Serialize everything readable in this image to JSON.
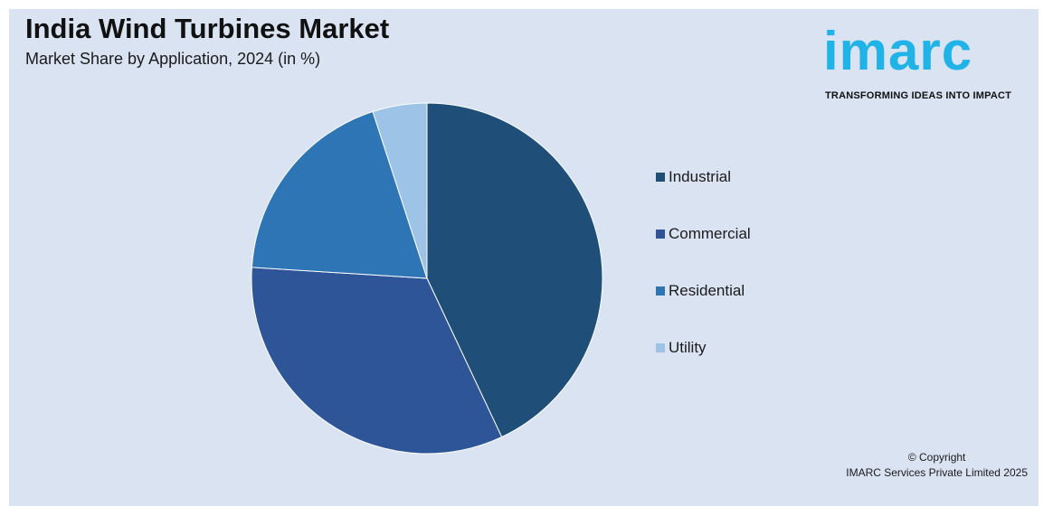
{
  "header": {
    "title": "India Wind Turbines Market",
    "subtitle": "Market Share by Application, 2024 (in %)"
  },
  "logo": {
    "name": "imarc",
    "tagline": "TRANSFORMING IDEAS INTO IMPACT",
    "color": "#1fb3e8"
  },
  "footer": {
    "copyright_line1": "© Copyright",
    "copyright_line2": "IMARC Services Private Limited 2025"
  },
  "colors": {
    "background": "#d9e3f2",
    "industrial": "#1f4e79",
    "commercial": "#2e5597",
    "residential": "#2e75b6",
    "utility": "#9dc3e6"
  },
  "chart_data": {
    "type": "pie",
    "title": "India Wind Turbines Market",
    "subtitle": "Market Share by Application, 2024 (in %)",
    "legend_position": "right",
    "series": [
      {
        "name": "Industrial",
        "value": 43,
        "color": "#1f4e79"
      },
      {
        "name": "Commercial",
        "value": 33,
        "color": "#2e5597"
      },
      {
        "name": "Residential",
        "value": 19,
        "color": "#2e75b6"
      },
      {
        "name": "Utility",
        "value": 5,
        "color": "#9dc3e6"
      }
    ]
  }
}
